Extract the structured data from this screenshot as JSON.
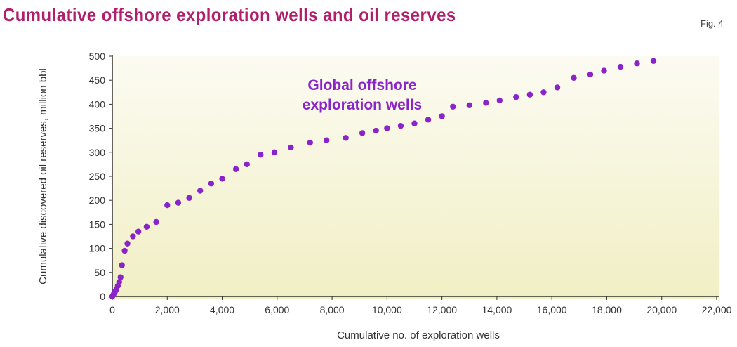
{
  "title": "Cumulative offshore exploration wells and oil reserves",
  "figure_label": "Fig. 4",
  "colors": {
    "title": "#b11e6b",
    "points": "#8a24c8",
    "axis": "#333333",
    "plot_bg_top": "#fcfbf2",
    "plot_bg_bottom": "#f1efc4"
  },
  "chart_data": {
    "type": "scatter",
    "title": "Cumulative offshore exploration wells and oil reserves",
    "xlabel": "Cumulative no. of exploration wells",
    "ylabel": "Cumulative discovered oil reserves, million bbl",
    "xlim": [
      0,
      22000
    ],
    "ylim": [
      0,
      500
    ],
    "xticks": [
      "0",
      "2,000",
      "4,000",
      "6,000",
      "8,000",
      "10,000",
      "12,000",
      "14,000",
      "16,000",
      "18,000",
      "20,000",
      "22,000"
    ],
    "yticks": [
      "0",
      "50",
      "100",
      "150",
      "200",
      "250",
      "300",
      "350",
      "400",
      "450",
      "500"
    ],
    "grid": false,
    "annotations": [
      {
        "text": "Global offshore",
        "x": 11000,
        "y": 430
      },
      {
        "text": "exploration wells",
        "x": 11000,
        "y": 398
      }
    ],
    "series": [
      {
        "points": [
          [
            0,
            0
          ],
          [
            50,
            5
          ],
          [
            100,
            10
          ],
          [
            150,
            15
          ],
          [
            200,
            22
          ],
          [
            250,
            30
          ],
          [
            300,
            40
          ],
          [
            350,
            65
          ],
          [
            450,
            95
          ],
          [
            550,
            110
          ],
          [
            750,
            125
          ],
          [
            950,
            135
          ],
          [
            1250,
            145
          ],
          [
            1600,
            155
          ],
          [
            2000,
            190
          ],
          [
            2400,
            195
          ],
          [
            2800,
            205
          ],
          [
            3200,
            220
          ],
          [
            3600,
            235
          ],
          [
            4000,
            245
          ],
          [
            4500,
            265
          ],
          [
            4900,
            275
          ],
          [
            5400,
            295
          ],
          [
            5900,
            300
          ],
          [
            6500,
            310
          ],
          [
            7200,
            320
          ],
          [
            7800,
            325
          ],
          [
            8500,
            330
          ],
          [
            9100,
            340
          ],
          [
            9600,
            345
          ],
          [
            10000,
            350
          ],
          [
            10500,
            355
          ],
          [
            11000,
            360
          ],
          [
            11500,
            368
          ],
          [
            12000,
            375
          ],
          [
            12400,
            395
          ],
          [
            13000,
            398
          ],
          [
            13600,
            403
          ],
          [
            14100,
            408
          ],
          [
            14700,
            415
          ],
          [
            15200,
            420
          ],
          [
            15700,
            425
          ],
          [
            16200,
            435
          ],
          [
            16800,
            455
          ],
          [
            17400,
            462
          ],
          [
            17900,
            470
          ],
          [
            18500,
            478
          ],
          [
            19100,
            485
          ],
          [
            19700,
            490
          ]
        ]
      }
    ]
  }
}
